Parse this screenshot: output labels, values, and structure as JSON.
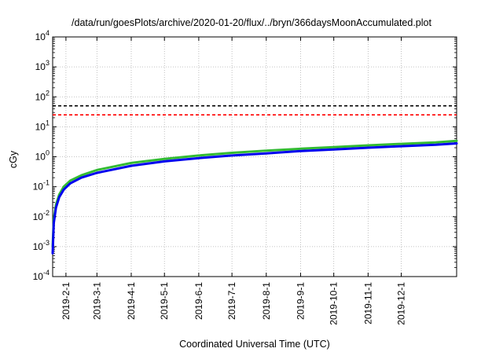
{
  "chart_data": {
    "type": "line",
    "title": "/data/run/goesPlots/archive/2020-01-20/flux/../bryn/366daysMoonAccumulated.plot",
    "xlabel": "Coordinated Universal Time (UTC)",
    "ylabel": "cGy",
    "x_range": [
      "2019-01-20",
      "2020-01-20"
    ],
    "y_scale": "log",
    "ylim": [
      0.0001,
      10000
    ],
    "grid": true,
    "x_tick_labels": [
      "2019-2-1",
      "2019-3-1",
      "2019-4-1",
      "2019-5-1",
      "2019-6-1",
      "2019-7-1",
      "2019-8-1",
      "2019-9-1",
      "2019-10-1",
      "2019-11-1",
      "2019-12-1"
    ],
    "y_ticks": [
      {
        "value": 0.0001,
        "base": "10",
        "exp": "-4"
      },
      {
        "value": 0.001,
        "base": "10",
        "exp": "-3"
      },
      {
        "value": 0.01,
        "base": "10",
        "exp": "-2"
      },
      {
        "value": 0.1,
        "base": "10",
        "exp": "-1"
      },
      {
        "value": 1,
        "base": "10",
        "exp": "0"
      },
      {
        "value": 10,
        "base": "10",
        "exp": "1"
      },
      {
        "value": 100,
        "base": "10",
        "exp": "2"
      },
      {
        "value": 1000,
        "base": "10",
        "exp": "3"
      },
      {
        "value": 10000,
        "base": "10",
        "exp": "4"
      }
    ],
    "reference_lines": [
      {
        "value": 50,
        "color": "#000000",
        "style": "dashed"
      },
      {
        "value": 25,
        "color": "#ff0000",
        "style": "dashed"
      }
    ],
    "series": [
      {
        "color": "#33bb33",
        "x": [
          "2019-01-20",
          "2019-01-21",
          "2019-01-23",
          "2019-01-26",
          "2019-01-30",
          "2019-02-05",
          "2019-02-15",
          "2019-03-01",
          "2019-04-01",
          "2019-05-01",
          "2019-06-01",
          "2019-07-01",
          "2019-08-01",
          "2019-09-01",
          "2019-10-01",
          "2019-11-01",
          "2019-12-01",
          "2020-01-01",
          "2020-01-20"
        ],
        "y": [
          0.001,
          0.008,
          0.025,
          0.055,
          0.1,
          0.16,
          0.24,
          0.36,
          0.62,
          0.85,
          1.1,
          1.35,
          1.6,
          1.85,
          2.1,
          2.4,
          2.7,
          3.0,
          3.4
        ]
      },
      {
        "color": "#0000ee",
        "x": [
          "2019-01-20",
          "2019-01-21",
          "2019-01-23",
          "2019-01-26",
          "2019-01-30",
          "2019-02-05",
          "2019-02-15",
          "2019-03-01",
          "2019-04-01",
          "2019-05-01",
          "2019-06-01",
          "2019-07-01",
          "2019-08-01",
          "2019-09-01",
          "2019-10-01",
          "2019-11-01",
          "2019-12-01",
          "2020-01-01",
          "2020-01-20"
        ],
        "y": [
          0.0006,
          0.006,
          0.02,
          0.045,
          0.08,
          0.13,
          0.2,
          0.29,
          0.5,
          0.7,
          0.9,
          1.1,
          1.3,
          1.55,
          1.75,
          2.0,
          2.25,
          2.5,
          2.8
        ]
      }
    ]
  }
}
